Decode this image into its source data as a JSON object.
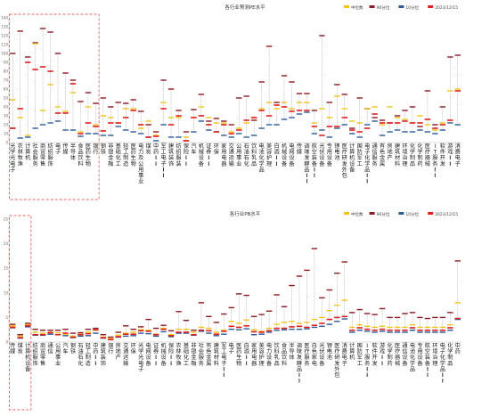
{
  "legend": [
    {
      "key": "median",
      "label": "中位数",
      "color": "#f0c419"
    },
    {
      "key": "p90",
      "label": "90分位",
      "color": "#8c1c24"
    },
    {
      "key": "p10",
      "label": "10分位",
      "color": "#2f5b9a"
    },
    {
      "key": "current",
      "label": "2023/12/15",
      "color": "#e02020"
    }
  ],
  "chart_data": [
    {
      "type": "box",
      "title": "各行业预测PE水平",
      "ylim": [
        0,
        140
      ],
      "yticks": [
        0,
        10,
        20,
        30,
        40,
        50,
        60,
        70,
        80,
        90,
        100,
        110,
        120,
        130,
        140
      ],
      "grid": false,
      "legend_position": "top-right",
      "categories": [
        "光学光电子",
        "农林牧渔",
        "计算机",
        "社会服务",
        "商贸零售",
        "纺织服饰",
        "电子",
        "传媒",
        "半导体",
        "食品饮料",
        "医药生物",
        "银行",
        "钢铁",
        "非银金融",
        "基础化工",
        "轻工制造",
        "医药生物",
        "电力及公用事业",
        "煤炭",
        "中药𝐈𝐈",
        "军工电子𝐈𝐈",
        "建筑装饰",
        "纺织服装",
        "保险𝐈𝐈",
        "汽车",
        "机械设备",
        "证券𝐈𝐈",
        "环保",
        "家用电器",
        "交通运输",
        "公用事业",
        "石油石化",
        "饮料乳品",
        "电池化学品",
        "美容护理",
        "白酒𝐈𝐈",
        "机械设备",
        "电网设备",
        "传媒",
        "调味发酵品𝐈𝐈",
        "航空装备𝐈𝐈",
        "光伏设备",
        "专用设备",
        "锂电池",
        "医疗研发外包",
        "计算机设备",
        "国防军工",
        "电子化学品𝐈𝐈",
        "通信服务",
        "有色金属",
        "房地产",
        "建筑材料",
        "环境治理",
        "化学制品",
        "化学制药",
        "医疗器械",
        "IT服务𝐈𝐈",
        "软件开发",
        "游戏𝐈𝐈",
        "消费电子"
      ],
      "series": [
        {
          "name": "中位数",
          "values": [
            48,
            28,
            8,
            111,
            36,
            65,
            40,
            35,
            56,
            12,
            40,
            20,
            30,
            28,
            22,
            38,
            38,
            16,
            24,
            8,
            45,
            28,
            28,
            6,
            28,
            40,
            28,
            22,
            22,
            12,
            16,
            22,
            28,
            38,
            45,
            38,
            45,
            38,
            45,
            45,
            22,
            38,
            28,
            52,
            38,
            24,
            22,
            38,
            40,
            20,
            40,
            28,
            26,
            22,
            30,
            20,
            14,
            22,
            58,
            60
          ]
        },
        {
          "name": "90分位",
          "values": [
            100,
            125,
            96,
            112,
            128,
            124,
            100,
            78,
            70,
            46,
            56,
            44,
            50,
            40,
            45,
            44,
            48,
            35,
            20,
            12,
            70,
            60,
            36,
            12,
            37,
            54,
            24,
            27,
            24,
            20,
            50,
            52,
            25,
            68,
            108,
            45,
            75,
            68,
            55,
            55,
            36,
            120,
            45,
            65,
            54,
            16,
            50,
            38,
            28,
            25,
            22,
            30,
            36,
            40,
            18,
            58,
            20,
            40,
            96,
            98
          ]
        },
        {
          "name": "10分位",
          "values": [
            16,
            5,
            6,
            16,
            20,
            22,
            24,
            14,
            14,
            7,
            10,
            10,
            8,
            8,
            18,
            14,
            12,
            10,
            6,
            2,
            20,
            6,
            6,
            2,
            12,
            24,
            14,
            12,
            8,
            6,
            10,
            6,
            8,
            16,
            20,
            20,
            26,
            28,
            32,
            34,
            10,
            14,
            6,
            16,
            20,
            10,
            6,
            20,
            24,
            8,
            12,
            14,
            12,
            12,
            14,
            12,
            10,
            14,
            22,
            20
          ]
        },
        {
          "name": "2023/12/15",
          "values": [
            16,
            38,
            90,
            82,
            85,
            80,
            33,
            33,
            66,
            10,
            22,
            18,
            13,
            22,
            22,
            28,
            36,
            20,
            6,
            7,
            38,
            20,
            30,
            2,
            28,
            30,
            20,
            12,
            20,
            10,
            14,
            25,
            28,
            36,
            30,
            42,
            40,
            35,
            36,
            36,
            18,
            8,
            18,
            18,
            28,
            14,
            12,
            16,
            32,
            22,
            22,
            22,
            24,
            22,
            22,
            26,
            16,
            20,
            25,
            58
          ]
        }
      ]
    },
    {
      "type": "box",
      "title": "各行业PB水平",
      "ylim": [
        0,
        25
      ],
      "yticks": [
        0,
        5,
        10,
        15,
        20,
        25
      ],
      "grid": false,
      "legend_position": "top-right",
      "categories": [
        "传媒",
        "煤炭",
        "计算机设备",
        "纺织服饰",
        "商贸零售",
        "通信",
        "公用事业",
        "汽车",
        "钢铁",
        "石油石化",
        "轻工制造",
        "中药𝐈𝐈",
        "建筑装饰",
        "银行",
        "房地产",
        "交通运输",
        "环保",
        "光学光电子",
        "电网设备",
        "证券𝐈𝐈",
        "机械设备",
        "保险𝐈𝐈",
        "农林牧渔",
        "基础化工",
        "非银金融",
        "社会服务",
        "有色金属",
        "建筑材料",
        "军工电子𝐈𝐈",
        "电子",
        "医药生物",
        "白酒𝐈𝐈",
        "家用电器",
        "美容护理",
        "电力设备",
        "饮料乳品",
        "食品饮料",
        "半导体",
        "调味发酵品𝐈𝐈",
        "医疗服务",
        "白色家电",
        "光伏设备",
        "锂电池",
        "医疗研发外包",
        "消费电子",
        "计算机",
        "国防军工",
        "IT服务𝐈𝐈",
        "软件开发",
        "游戏𝐈𝐈",
        "化学制药",
        "医疗器械",
        "通信设备",
        "电池化学品",
        "专用设备",
        "航空装备𝐈𝐈",
        "环境治理",
        "电子化学品𝐈𝐈",
        "化学制品",
        "中药"
      ],
      "series": [
        {
          "name": "中位数",
          "values": [
            3.3,
            1.2,
            3.5,
            2.0,
            1.8,
            2.0,
            1.9,
            1.6,
            1.2,
            1.6,
            2.0,
            2.4,
            1.0,
            0.7,
            1.4,
            1.8,
            2.0,
            2.5,
            2.4,
            1.6,
            2.8,
            1.5,
            2.6,
            2.6,
            2.0,
            3.0,
            2.8,
            2.0,
            2.4,
            4.2,
            3.8,
            4.5,
            2.5,
            2.2,
            2.8,
            3.6,
            4.0,
            4.2,
            3.8,
            4.0,
            4.6,
            5.0,
            6.4,
            7.5,
            8.5,
            3.0,
            3.5,
            3.2,
            3.0,
            3.2,
            3.0,
            3.0,
            3.0,
            3.5,
            3.0,
            3.0,
            3.0,
            3.0,
            3.5,
            8.0
          ]
        },
        {
          "name": "90分位",
          "values": [
            3.6,
            1.5,
            3.8,
            2.6,
            2.4,
            2.4,
            2.4,
            2.6,
            1.8,
            1.9,
            2.6,
            2.8,
            1.5,
            1.0,
            2.0,
            3.3,
            2.6,
            3.1,
            4.6,
            2.8,
            3.4,
            2.3,
            6.2,
            4.4,
            2.4,
            8.0,
            5.2,
            4.0,
            5.7,
            7.0,
            9.8,
            9.5,
            5.2,
            5.6,
            6.3,
            9.6,
            7.2,
            11.5,
            13.4,
            14.6,
            19.0,
            9.0,
            10.6,
            14.0,
            16.3,
            6.0,
            6.6,
            5.8,
            5.6,
            6.8,
            5.0,
            5.0,
            5.8,
            6.0,
            5.0,
            4.8,
            5.0,
            5.0,
            6.0,
            16.5
          ]
        },
        {
          "name": "10分位",
          "values": [
            2.9,
            0.8,
            3.1,
            1.4,
            1.4,
            1.6,
            1.5,
            1.3,
            0.9,
            1.2,
            1.3,
            1.8,
            0.8,
            0.5,
            1.0,
            1.2,
            1.3,
            1.8,
            1.7,
            1.2,
            2.1,
            1.1,
            1.8,
            1.8,
            1.4,
            2.2,
            1.8,
            1.3,
            1.6,
            2.6,
            2.5,
            2.7,
            1.5,
            1.6,
            2.0,
            2.4,
            2.5,
            2.6,
            2.6,
            2.7,
            3.0,
            3.2,
            3.6,
            4.2,
            4.7,
            2.0,
            2.4,
            2.2,
            2.0,
            2.2,
            2.0,
            2.0,
            2.0,
            2.4,
            2.0,
            2.0,
            2.0,
            2.0,
            2.4,
            4.6
          ]
        },
        {
          "name": "2023/12/15",
          "values": [
            3.0,
            0.9,
            3.3,
            1.5,
            1.5,
            1.9,
            1.5,
            1.8,
            1.0,
            1.5,
            1.7,
            2.5,
            0.9,
            0.5,
            1.1,
            1.6,
            1.6,
            2.3,
            2.2,
            1.5,
            2.6,
            1.3,
            2.0,
            2.0,
            1.5,
            2.4,
            2.3,
            1.6,
            2.2,
            3.2,
            3.0,
            3.3,
            2.1,
            2.0,
            2.3,
            2.8,
            2.8,
            3.1,
            3.2,
            3.0,
            3.4,
            3.8,
            4.6,
            5.0,
            5.2,
            2.4,
            2.9,
            2.6,
            2.4,
            2.6,
            2.4,
            2.4,
            2.4,
            2.9,
            2.4,
            2.4,
            2.4,
            2.4,
            2.9,
            4.8
          ]
        }
      ]
    }
  ]
}
